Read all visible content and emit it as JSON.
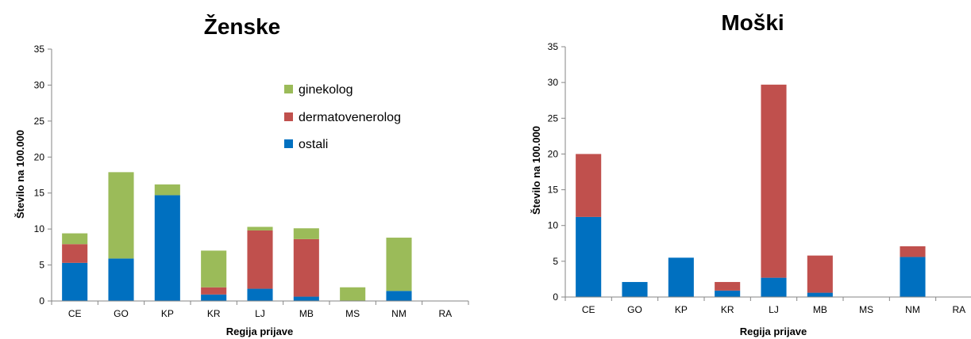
{
  "colors": {
    "ginekolog": "#9BBB59",
    "dermatovenerolog": "#C0504D",
    "ostali": "#0070C0",
    "axis": "#868686"
  },
  "chart_data": [
    {
      "type": "bar",
      "stacked": true,
      "title": "Ženske",
      "xlabel": "Regija prijave",
      "ylabel": "Število na 100.000",
      "ylim": [
        0,
        35
      ],
      "yticks": [
        0,
        5,
        10,
        15,
        20,
        25,
        30,
        35
      ],
      "categories": [
        "CE",
        "GO",
        "KP",
        "KR",
        "LJ",
        "MB",
        "MS",
        "NM",
        "RA"
      ],
      "legend": "inside-upper-right",
      "series": [
        {
          "name": "ostali",
          "values": [
            5.3,
            5.9,
            14.7,
            0.9,
            1.7,
            0.6,
            0,
            1.4,
            0
          ]
        },
        {
          "name": "dermatovenerolog",
          "values": [
            2.6,
            0,
            0,
            1.0,
            8.1,
            8.0,
            0,
            0,
            0
          ]
        },
        {
          "name": "ginekolog",
          "values": [
            1.5,
            12.0,
            1.5,
            5.1,
            0.5,
            1.5,
            1.9,
            7.4,
            0
          ]
        }
      ]
    },
    {
      "type": "bar",
      "stacked": true,
      "title": "Moški",
      "xlabel": "Regija prijave",
      "ylabel": "Število na 100.000",
      "ylim": [
        0,
        35
      ],
      "yticks": [
        0,
        5,
        10,
        15,
        20,
        25,
        30,
        35
      ],
      "categories": [
        "CE",
        "GO",
        "KP",
        "KR",
        "LJ",
        "MB",
        "MS",
        "NM",
        "RA"
      ],
      "series": [
        {
          "name": "ostali",
          "values": [
            11.2,
            2.1,
            5.5,
            0.9,
            2.7,
            0.6,
            0,
            5.6,
            0
          ]
        },
        {
          "name": "dermatovenerolog",
          "values": [
            8.8,
            0,
            0,
            1.2,
            27.0,
            5.2,
            0,
            1.5,
            0
          ]
        }
      ]
    }
  ]
}
